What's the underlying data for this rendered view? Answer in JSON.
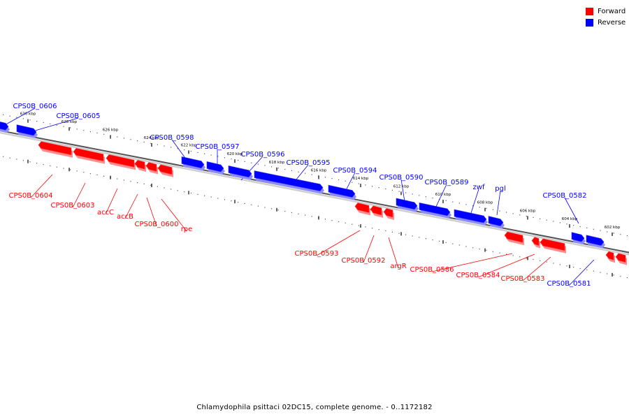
{
  "legend": [
    {
      "label": "Forward",
      "color": "#ff0000"
    },
    {
      "label": "Reverse",
      "color": "#0000ff"
    }
  ],
  "caption": "Chlamydophila psittaci 02DC15, complete genome. - 0..1172182",
  "colors": {
    "forward": "#ff0000",
    "reverse": "#0000ff",
    "backbone": "#888888"
  },
  "ticks": [
    "630 kbp",
    "628 kbp",
    "626 kbp",
    "624 kbp",
    "622 kbp",
    "620 kbp",
    "618 kbp",
    "616 kbp",
    "614 kbp",
    "612 kbp",
    "610 kbp",
    "608 kbp",
    "606 kbp",
    "604 kbp",
    "602 kbp"
  ],
  "genes": {
    "reverse": [
      "CPS0B_0606",
      "CPS0B_0605",
      "CPS0B_0598",
      "CPS0B_0597",
      "CPS0B_0596",
      "CPS0B_0595",
      "CPS0B_0594",
      "CPS0B_0590",
      "CPS0B_0589",
      "zwf",
      "pgl",
      "CPS0B_0582",
      "CPS0B_0581"
    ],
    "forward": [
      "CPS0B_0604",
      "CPS0B_0603",
      "accC",
      "accB",
      "CPS0B_0600",
      "rpe",
      "CPS0B_0593",
      "CPS0B_0592",
      "argR",
      "CPS0B_0586",
      "CPS0B_0584",
      "CPS0B_0583"
    ]
  }
}
